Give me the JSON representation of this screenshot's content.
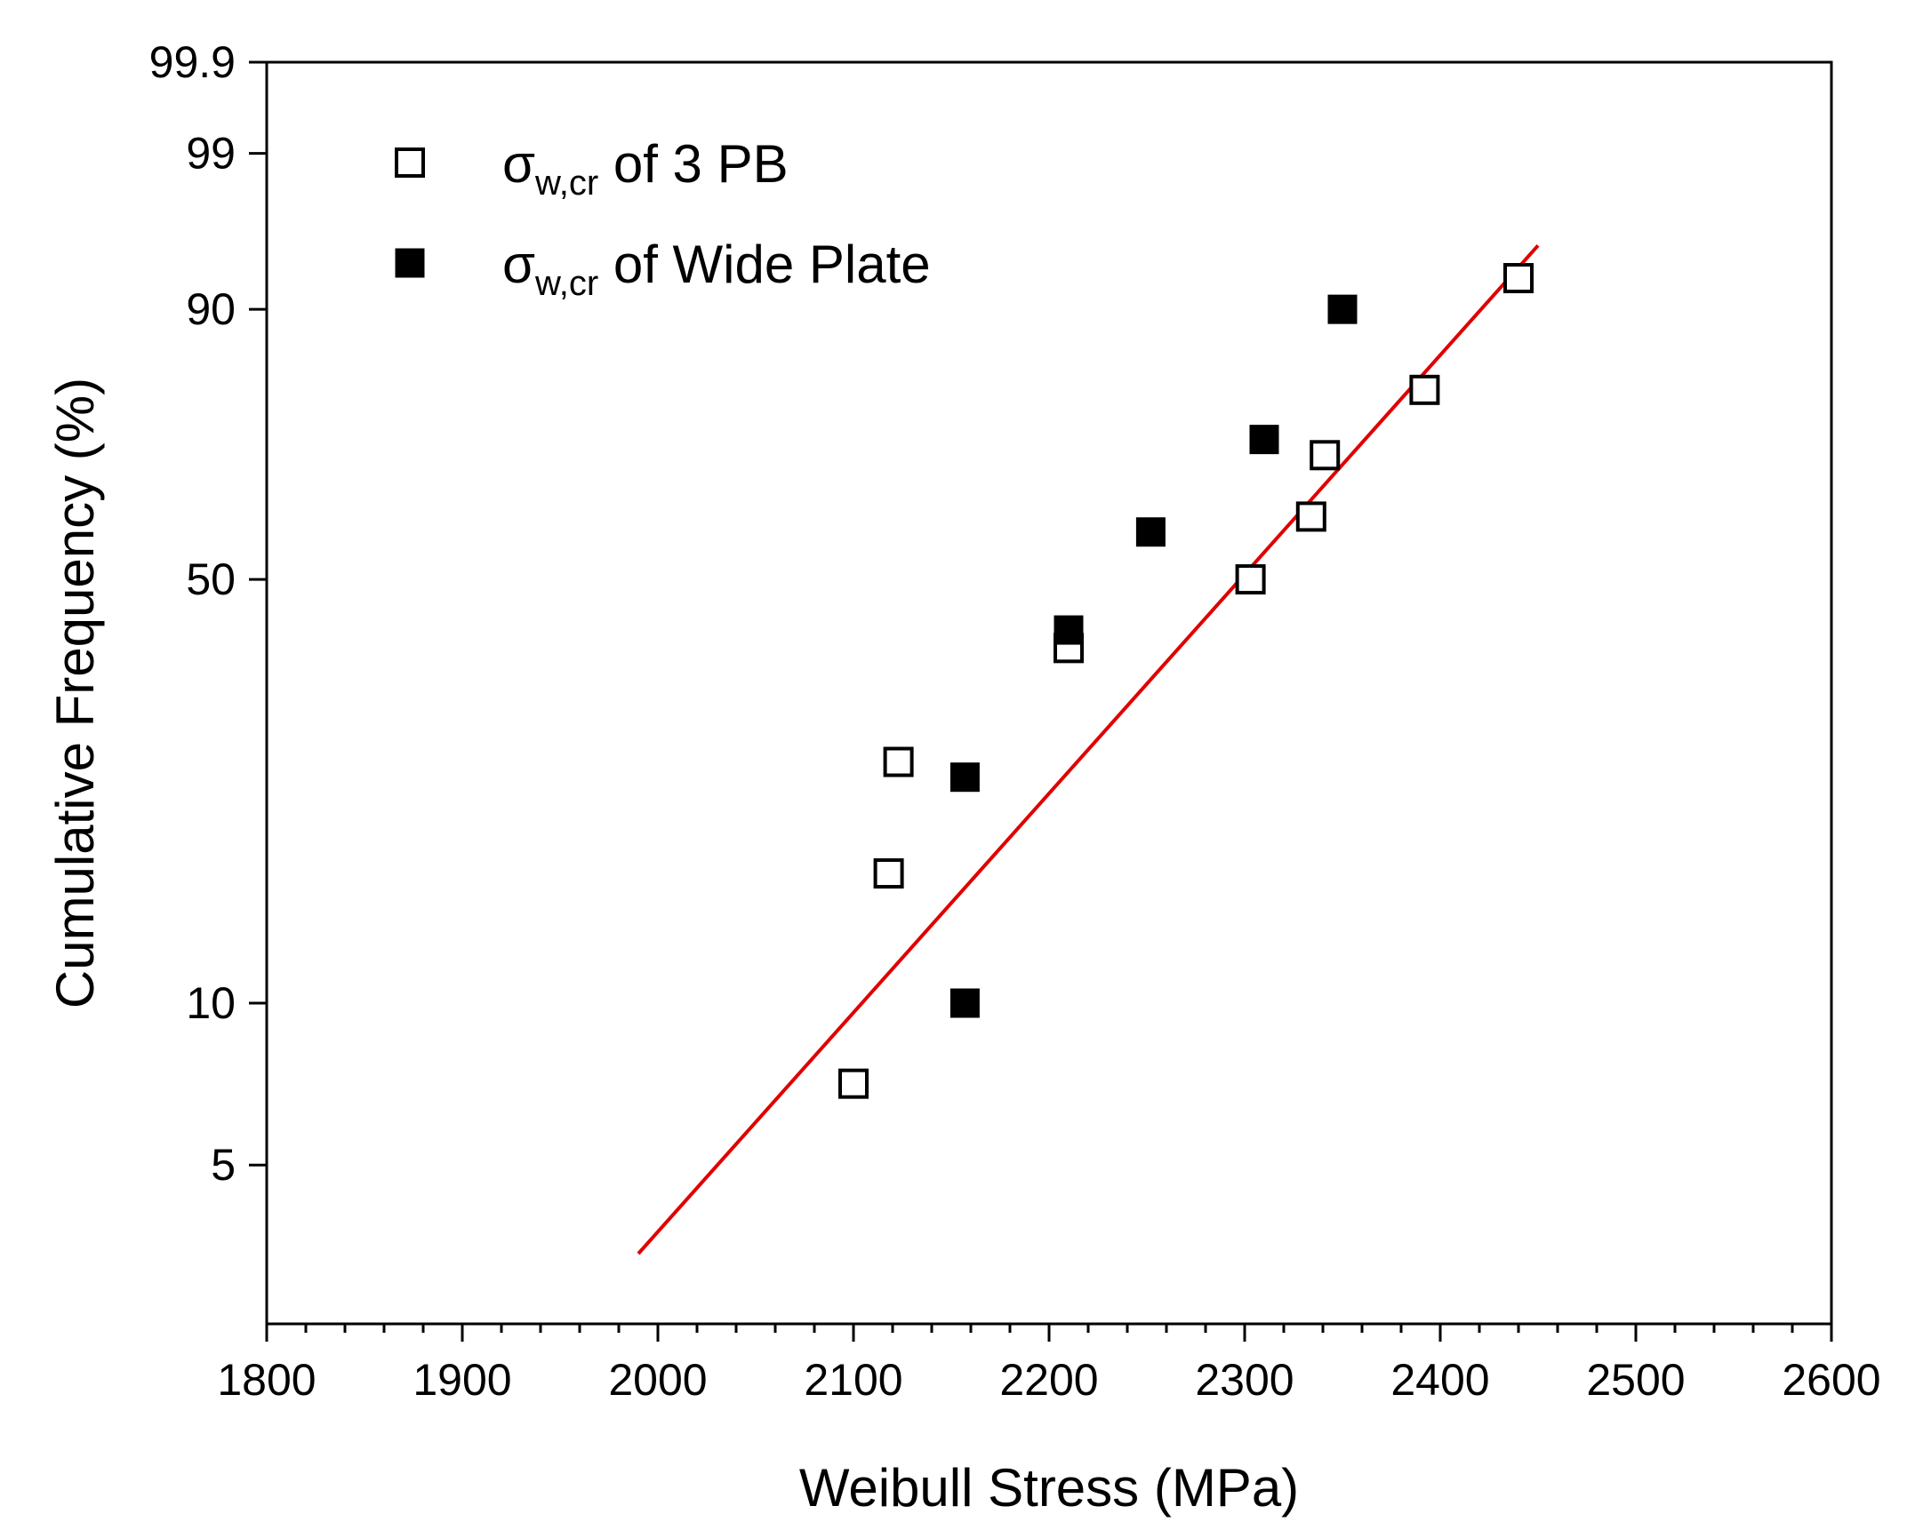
{
  "chart_data": {
    "type": "scatter",
    "xlabel": "Weibull Stress (MPa)",
    "ylabel": "Cumulative Frequency (%)",
    "xlim": [
      1800,
      2600
    ],
    "x_ticks": [
      1800,
      1900,
      2000,
      2100,
      2200,
      2300,
      2400,
      2500,
      2600
    ],
    "x_minor_step": 20,
    "y_scale": "weibull-probability",
    "ylim": [
      2.5,
      99.9
    ],
    "y_ticks": [
      {
        "value": 5,
        "label": "5"
      },
      {
        "value": 10,
        "label": "10"
      },
      {
        "value": 50,
        "label": "50"
      },
      {
        "value": 90,
        "label": "90"
      },
      {
        "value": 99,
        "label": "99"
      },
      {
        "value": 99.9,
        "label": "99.9"
      }
    ],
    "grid": false,
    "legend_position": "top-left",
    "series": [
      {
        "name_symbol": "σ",
        "name_subscript": "w,cr",
        "name_rest": " of 3 PB",
        "marker": "open-square",
        "color": "#000000",
        "points": [
          {
            "x": 2100,
            "y": 7.1
          },
          {
            "x": 2118,
            "y": 17.1
          },
          {
            "x": 2123,
            "y": 26.5
          },
          {
            "x": 2210,
            "y": 40.0
          },
          {
            "x": 2303,
            "y": 50.0
          },
          {
            "x": 2334,
            "y": 60.0
          },
          {
            "x": 2341,
            "y": 70.0
          },
          {
            "x": 2392,
            "y": 80.0
          },
          {
            "x": 2440,
            "y": 92.9
          }
        ]
      },
      {
        "name_symbol": "σ",
        "name_subscript": "w,cr",
        "name_rest": " of Wide Plate",
        "marker": "filled-square",
        "color": "#000000",
        "points": [
          {
            "x": 2157,
            "y": 10.0
          },
          {
            "x": 2157,
            "y": 25.0
          },
          {
            "x": 2210,
            "y": 42.5
          },
          {
            "x": 2252,
            "y": 57.5
          },
          {
            "x": 2310,
            "y": 72.5
          },
          {
            "x": 2350,
            "y": 90.0
          }
        ]
      }
    ],
    "fit_line": {
      "color": "#e00000",
      "x": [
        1990,
        2450
      ],
      "y": [
        3.4,
        95.3
      ]
    }
  }
}
